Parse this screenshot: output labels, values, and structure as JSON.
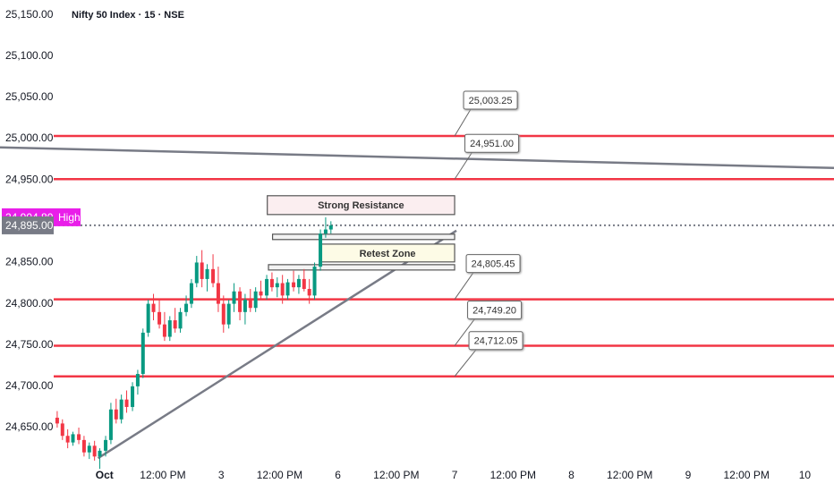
{
  "chart_data": {
    "type": "candlestick",
    "title": "Nifty 50 Index · 15 · NSE",
    "xlim": [
      -1.79,
      12.5
    ],
    "ylim": [
      24572,
      25168
    ],
    "xticks": [
      {
        "value": 0,
        "label": "Oct"
      },
      {
        "value": 1,
        "label": "12:00 PM"
      },
      {
        "value": 2,
        "label": "3"
      },
      {
        "value": 3,
        "label": "12:00 PM"
      },
      {
        "value": 4,
        "label": "6"
      },
      {
        "value": 5,
        "label": "12:00 PM"
      },
      {
        "value": 6,
        "label": "7"
      },
      {
        "value": 7,
        "label": "12:00 PM"
      },
      {
        "value": 8,
        "label": "8"
      },
      {
        "value": 9,
        "label": "12:00 PM"
      },
      {
        "value": 10,
        "label": "9"
      },
      {
        "value": 11,
        "label": "12:00 PM"
      },
      {
        "value": 12,
        "label": "10"
      }
    ],
    "yticks": [
      {
        "value": 24650,
        "label": "24,650.00"
      },
      {
        "value": 24700,
        "label": "24,700.00"
      },
      {
        "value": 24750,
        "label": "24,750.00"
      },
      {
        "value": 24800,
        "label": "24,800.00"
      },
      {
        "value": 24850,
        "label": "24,850.00"
      },
      {
        "value": 24900,
        "label": "24,900.00"
      },
      {
        "value": 24950,
        "label": "24,950.00"
      },
      {
        "value": 25000,
        "label": "25,000.00"
      },
      {
        "value": 25050,
        "label": "25,050.00"
      },
      {
        "value": 25100,
        "label": "25,100.00"
      },
      {
        "value": 25150,
        "label": "25,150.00"
      }
    ],
    "x": [
      -0.81,
      -0.72,
      -0.63,
      -0.54,
      -0.44,
      -0.35,
      -0.26,
      -0.17,
      -0.08,
      0.02,
      0.11,
      0.2,
      0.29,
      0.38,
      0.48,
      0.57,
      0.66,
      0.75,
      0.84,
      0.94,
      1.03,
      1.12,
      1.21,
      1.3,
      1.4,
      1.49,
      1.58,
      1.67,
      1.76,
      1.86,
      1.95,
      2.04,
      2.13,
      2.22,
      2.32,
      2.41,
      2.5,
      2.59,
      2.68,
      2.78,
      2.87,
      2.96,
      3.05,
      3.14,
      3.24,
      3.33,
      3.42,
      3.51,
      3.6,
      3.7,
      3.79,
      3.88
    ],
    "open": [
      24662,
      24655,
      24640,
      24632,
      24642,
      24635,
      24620,
      24628,
      24615,
      24622,
      24635,
      24672,
      24660,
      24684,
      24675,
      24700,
      24715,
      24765,
      24800,
      24790,
      24775,
      24760,
      24780,
      24770,
      24790,
      24800,
      24825,
      24850,
      24830,
      24842,
      24825,
      24800,
      24775,
      24800,
      24815,
      24790,
      24805,
      24795,
      24815,
      24810,
      24830,
      24820,
      24825,
      24810,
      24826,
      24820,
      24830,
      24818,
      24810,
      24845,
      24885,
      24890
    ],
    "high": [
      24670,
      24660,
      24648,
      24645,
      24650,
      24640,
      24632,
      24634,
      24625,
      24640,
      24680,
      24685,
      24690,
      24695,
      24705,
      24720,
      24770,
      24805,
      24812,
      24805,
      24790,
      24785,
      24795,
      24795,
      24810,
      24830,
      24858,
      24865,
      24848,
      24860,
      24845,
      24810,
      24805,
      24825,
      24820,
      24812,
      24818,
      24820,
      24828,
      24835,
      24838,
      24832,
      24835,
      24830,
      24840,
      24835,
      24842,
      24830,
      24850,
      24890,
      24904.8,
      24900
    ],
    "low": [
      24650,
      24635,
      24625,
      24628,
      24630,
      24615,
      24612,
      24610,
      24600,
      24615,
      24630,
      24655,
      24655,
      24668,
      24670,
      24690,
      24710,
      24760,
      24780,
      24770,
      24755,
      24755,
      24765,
      24765,
      24785,
      24795,
      24820,
      24820,
      24815,
      24820,
      24790,
      24765,
      24770,
      24790,
      24780,
      24775,
      24790,
      24790,
      24805,
      24805,
      24815,
      24808,
      24800,
      24805,
      24815,
      24812,
      24815,
      24800,
      24805,
      24840,
      24880,
      24885
    ],
    "close": [
      24655,
      24640,
      24632,
      24642,
      24635,
      24620,
      24628,
      24615,
      24622,
      24635,
      24672,
      24660,
      24684,
      24675,
      24700,
      24715,
      24765,
      24800,
      24790,
      24775,
      24760,
      24780,
      24770,
      24790,
      24800,
      24825,
      24850,
      24830,
      24842,
      24825,
      24800,
      24775,
      24800,
      24815,
      24790,
      24805,
      24795,
      24815,
      24810,
      24830,
      24820,
      24825,
      24810,
      24826,
      24820,
      24830,
      24818,
      24810,
      24845,
      24885,
      24890,
      24895
    ],
    "up_color": "#089981",
    "down_color": "#f23645",
    "level_color": "#f23645",
    "levels": [
      {
        "value": 25003.25,
        "label": "25,003.25"
      },
      {
        "value": 24951,
        "label": "24,951.00"
      },
      {
        "value": 24805.45,
        "label": "24,805.45"
      },
      {
        "value": 24749.2,
        "label": "24,749.20"
      },
      {
        "value": 24712.05,
        "label": "24,712.05"
      }
    ],
    "trendlines": [
      {
        "x": [
          -1.79,
          12.5
        ],
        "y": [
          24989.5,
          24964.5
        ],
        "color": "#787b86"
      },
      {
        "x": [
          -0.11,
          6.03
        ],
        "y": [
          24613,
          24888.6
        ],
        "color": "#787b86"
      }
    ],
    "zones": [
      {
        "label": "Strong Resistance",
        "x": [
          2.79,
          6.0
        ],
        "y": [
          24908.1,
          24930.9
        ],
        "fill": "#fbeef0"
      },
      {
        "x": [
          2.88,
          6.0
        ],
        "y": [
          24877.8,
          24884.3
        ],
        "fill": "#f3f3f3"
      },
      {
        "label": "Retest Zone",
        "x": [
          3.7,
          6.0
        ],
        "y": [
          24850.7,
          24872.3
        ],
        "fill": "#fdfbe6"
      },
      {
        "x": [
          2.81,
          6.0
        ],
        "y": [
          24840.9,
          24847.4
        ],
        "fill": "#f3f3f3"
      }
    ],
    "high_marker": {
      "value": 24904.8,
      "label": "24,904.80",
      "text": "High",
      "color": "#e91ee9"
    },
    "last_price": {
      "value": 24895,
      "label": "24,895.00",
      "color": "#787b86"
    }
  }
}
